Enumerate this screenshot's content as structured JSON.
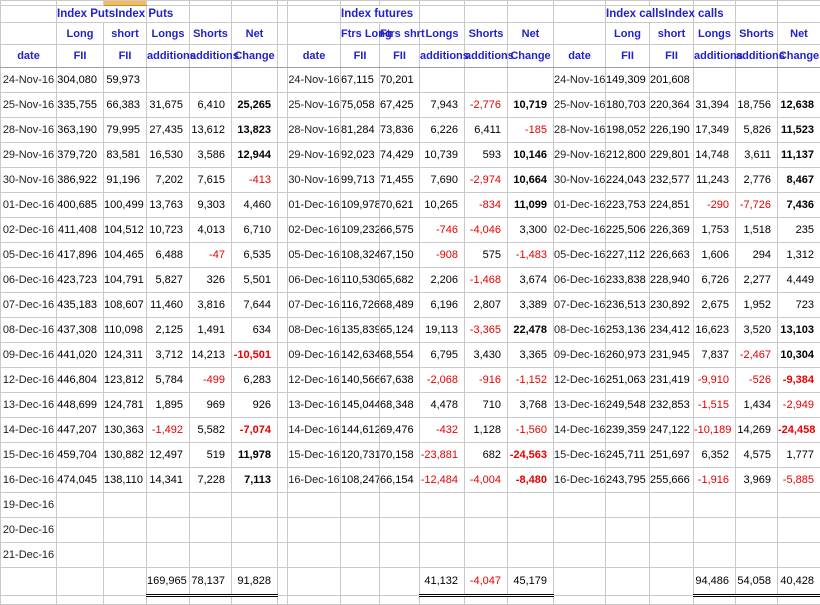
{
  "colors": {
    "header_text": "#2222cc",
    "negative": "#e60000",
    "highlight_cell": "#f2bb62",
    "gridline": "#c9c9c9"
  },
  "sections": [
    {
      "title": "Index PutsIndex Puts",
      "h1": [
        "",
        "Long",
        "short",
        "Longs",
        "Shorts",
        "Net"
      ],
      "h2": [
        "date",
        "FII",
        "FII",
        "additions",
        "additions",
        "Change"
      ],
      "totals": [
        "169,965",
        "78,137",
        "91,828"
      ]
    },
    {
      "title": "Index futures",
      "h1": [
        "",
        "Ftrs Long",
        "Ftrs shrt",
        "Longs",
        "Shorts",
        "Net"
      ],
      "h2": [
        "date",
        "FII",
        "FII",
        "additions",
        "additions",
        "Change"
      ],
      "totals": [
        "41,132",
        "-4,047",
        "45,179"
      ]
    },
    {
      "title": "Index callsIndex calls",
      "h1": [
        "",
        "Long",
        "short",
        "Longs",
        "Shorts",
        "Net"
      ],
      "h2": [
        "date",
        "FII",
        "FII",
        "additions",
        "additions",
        "Change"
      ],
      "totals": [
        "94,486",
        "54,058",
        "40,428"
      ]
    }
  ],
  "rows": [
    {
      "d": "24-Nov-16",
      "p": [
        "304,080",
        "59,973",
        "",
        "",
        ""
      ],
      "fd": "24-Nov-16",
      "f": [
        "67,115",
        "70,201",
        "",
        "",
        ""
      ],
      "cd": "24-Nov-16",
      "c": [
        "149,309",
        "201,608",
        "",
        "",
        ""
      ]
    },
    {
      "d": "25-Nov-16",
      "p": [
        "335,755",
        "66,383",
        "31,675",
        "6,410",
        {
          "v": "25,265",
          "b": true
        }
      ],
      "fd": "25-Nov-16",
      "f": [
        "75,058",
        "67,425",
        "7,943",
        "-2,776",
        {
          "v": "10,719",
          "b": true
        }
      ],
      "cd": "25-Nov-16",
      "c": [
        "180,703",
        "220,364",
        "31,394",
        "18,756",
        {
          "v": "12,638",
          "b": true
        }
      ]
    },
    {
      "d": "28-Nov-16",
      "p": [
        "363,190",
        "79,995",
        "27,435",
        "13,612",
        {
          "v": "13,823",
          "b": true
        }
      ],
      "fd": "28-Nov-16",
      "f": [
        "81,284",
        "73,836",
        "6,226",
        "6,411",
        "-185"
      ],
      "cd": "28-Nov-16",
      "c": [
        "198,052",
        "226,190",
        "17,349",
        "5,826",
        {
          "v": "11,523",
          "b": true
        }
      ]
    },
    {
      "d": "29-Nov-16",
      "p": [
        "379,720",
        "83,581",
        "16,530",
        "3,586",
        {
          "v": "12,944",
          "b": true
        }
      ],
      "fd": "29-Nov-16",
      "f": [
        "92,023",
        "74,429",
        "10,739",
        "593",
        {
          "v": "10,146",
          "b": true
        }
      ],
      "cd": "29-Nov-16",
      "c": [
        "212,800",
        "229,801",
        "14,748",
        "3,611",
        {
          "v": "11,137",
          "b": true
        }
      ]
    },
    {
      "d": "30-Nov-16",
      "p": [
        "386,922",
        "91,196",
        "7,202",
        "7,615",
        "-413"
      ],
      "fd": "30-Nov-16",
      "f": [
        "99,713",
        "71,455",
        "7,690",
        "-2,974",
        {
          "v": "10,664",
          "b": true
        }
      ],
      "cd": "30-Nov-16",
      "c": [
        "224,043",
        "232,577",
        "11,243",
        "2,776",
        {
          "v": "8,467",
          "b": true
        }
      ]
    },
    {
      "d": "01-Dec-16",
      "p": [
        "400,685",
        "100,499",
        "13,763",
        "9,303",
        "4,460"
      ],
      "fd": "01-Dec-16",
      "f": [
        "109,978",
        "70,621",
        "10,265",
        "-834",
        {
          "v": "11,099",
          "b": true
        }
      ],
      "cd": "01-Dec-16",
      "c": [
        "223,753",
        "224,851",
        "-290",
        "-7,726",
        {
          "v": "7,436",
          "b": true
        }
      ]
    },
    {
      "d": "02-Dec-16",
      "p": [
        "411,408",
        "104,512",
        "10,723",
        "4,013",
        "6,710"
      ],
      "fd": "02-Dec-16",
      "f": [
        "109,232",
        "66,575",
        "-746",
        "-4,046",
        "3,300"
      ],
      "cd": "02-Dec-16",
      "c": [
        "225,506",
        "226,369",
        "1,753",
        "1,518",
        "235"
      ]
    },
    {
      "d": "05-Dec-16",
      "p": [
        "417,896",
        "104,465",
        "6,488",
        "-47",
        "6,535"
      ],
      "fd": "05-Dec-16",
      "f": [
        "108,324",
        "67,150",
        "-908",
        "575",
        "-1,483"
      ],
      "cd": "05-Dec-16",
      "c": [
        "227,112",
        "226,663",
        "1,606",
        "294",
        "1,312"
      ]
    },
    {
      "d": "06-Dec-16",
      "p": [
        "423,723",
        "104,791",
        "5,827",
        "326",
        "5,501"
      ],
      "fd": "06-Dec-16",
      "f": [
        "110,530",
        "65,682",
        "2,206",
        "-1,468",
        "3,674"
      ],
      "cd": "06-Dec-16",
      "c": [
        "233,838",
        "228,940",
        "6,726",
        "2,277",
        "4,449"
      ]
    },
    {
      "d": "07-Dec-16",
      "p": [
        "435,183",
        "108,607",
        "11,460",
        "3,816",
        "7,644"
      ],
      "fd": "07-Dec-16",
      "f": [
        "116,726",
        "68,489",
        "6,196",
        "2,807",
        "3,389"
      ],
      "cd": "07-Dec-16",
      "c": [
        "236,513",
        "230,892",
        "2,675",
        "1,952",
        "723"
      ]
    },
    {
      "d": "08-Dec-16",
      "p": [
        "437,308",
        "110,098",
        "2,125",
        "1,491",
        "634"
      ],
      "fd": "08-Dec-16",
      "f": [
        "135,839",
        "65,124",
        "19,113",
        "-3,365",
        {
          "v": "22,478",
          "b": true
        }
      ],
      "cd": "08-Dec-16",
      "c": [
        "253,136",
        "234,412",
        "16,623",
        "3,520",
        {
          "v": "13,103",
          "b": true
        }
      ]
    },
    {
      "d": "09-Dec-16",
      "p": [
        "441,020",
        "124,311",
        "3,712",
        "14,213",
        {
          "v": "-10,501",
          "b": true
        }
      ],
      "fd": "09-Dec-16",
      "f": [
        "142,634",
        "68,554",
        "6,795",
        "3,430",
        "3,365"
      ],
      "cd": "09-Dec-16",
      "c": [
        "260,973",
        "231,945",
        "7,837",
        "-2,467",
        {
          "v": "10,304",
          "b": true
        }
      ]
    },
    {
      "d": "12-Dec-16",
      "p": [
        "446,804",
        "123,812",
        "5,784",
        "-499",
        "6,283"
      ],
      "fd": "12-Dec-16",
      "f": [
        "140,566",
        "67,638",
        "-2,068",
        "-916",
        "-1,152"
      ],
      "cd": "12-Dec-16",
      "c": [
        "251,063",
        "231,419",
        "-9,910",
        "-526",
        {
          "v": "-9,384",
          "b": true
        }
      ]
    },
    {
      "d": "13-Dec-16",
      "p": [
        "448,699",
        "124,781",
        "1,895",
        "969",
        "926"
      ],
      "fd": "13-Dec-16",
      "f": [
        "145,044",
        "68,348",
        "4,478",
        "710",
        "3,768"
      ],
      "cd": "13-Dec-16",
      "c": [
        "249,548",
        "232,853",
        "-1,515",
        "1,434",
        "-2,949"
      ]
    },
    {
      "d": "14-Dec-16",
      "p": [
        "447,207",
        "130,363",
        "-1,492",
        "5,582",
        {
          "v": "-7,074",
          "b": true
        }
      ],
      "fd": "14-Dec-16",
      "f": [
        "144,612",
        "69,476",
        "-432",
        "1,128",
        "-1,560"
      ],
      "cd": "14-Dec-16",
      "c": [
        "239,359",
        "247,122",
        "-10,189",
        "14,269",
        {
          "v": "-24,458",
          "b": true
        }
      ]
    },
    {
      "d": "15-Dec-16",
      "p": [
        "459,704",
        "130,882",
        "12,497",
        "519",
        {
          "v": "11,978",
          "b": true
        }
      ],
      "fd": "15-Dec-16",
      "f": [
        "120,731",
        "70,158",
        "-23,881",
        "682",
        {
          "v": "-24,563",
          "b": true
        }
      ],
      "cd": "15-Dec-16",
      "c": [
        "245,711",
        "251,697",
        "6,352",
        "4,575",
        "1,777"
      ]
    },
    {
      "d": "16-Dec-16",
      "p": [
        "474,045",
        "138,110",
        "14,341",
        "7,228",
        {
          "v": "7,113",
          "b": true
        }
      ],
      "fd": "16-Dec-16",
      "f": [
        "108,247",
        "66,154",
        "-12,484",
        "-4,004",
        {
          "v": "-8,480",
          "b": true
        }
      ],
      "cd": "16-Dec-16",
      "c": [
        "243,795",
        "255,666",
        "-1,916",
        "3,969",
        "-5,885"
      ]
    },
    {
      "d": "19-Dec-16",
      "p": [
        "",
        "",
        "",
        "",
        ""
      ],
      "fd": "",
      "f": [
        "",
        "",
        "",
        "",
        ""
      ],
      "cd": "",
      "c": [
        "",
        "",
        "",
        "",
        ""
      ]
    },
    {
      "d": "20-Dec-16",
      "p": [
        "",
        "",
        "",
        "",
        ""
      ],
      "fd": "",
      "f": [
        "",
        "",
        "",
        "",
        ""
      ],
      "cd": "",
      "c": [
        "",
        "",
        "",
        "",
        ""
      ]
    },
    {
      "d": "21-Dec-16",
      "p": [
        "",
        "",
        "",
        "",
        ""
      ],
      "fd": "",
      "f": [
        "",
        "",
        "",
        "",
        ""
      ],
      "cd": "",
      "c": [
        "",
        "",
        "",
        "",
        ""
      ]
    }
  ]
}
